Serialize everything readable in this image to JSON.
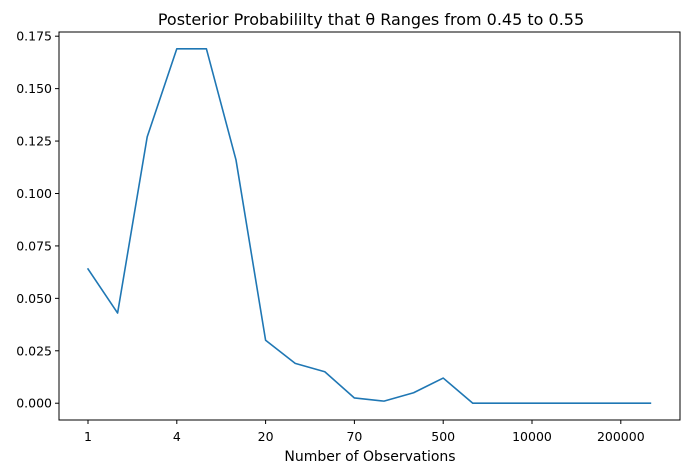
{
  "chart_data": {
    "type": "line",
    "title": "Posterior Probabililty that θ Ranges from 0.45 to 0.55",
    "xlabel": "Number of Observations",
    "ylabel": "",
    "ylim": [
      -0.008,
      0.177
    ],
    "grid": false,
    "xtick_labels": [
      "1",
      "4",
      "20",
      "70",
      "500",
      "10000",
      "200000"
    ],
    "ytick_labels": [
      "0.000",
      "0.025",
      "0.050",
      "0.075",
      "0.100",
      "0.125",
      "0.150",
      "0.175"
    ],
    "yticks": [
      0.0,
      0.025,
      0.05,
      0.075,
      0.1,
      0.125,
      0.15,
      0.175
    ],
    "series": [
      {
        "color": "#1f77b4",
        "values": [
          0.064,
          0.043,
          0.127,
          0.169,
          0.169,
          0.116,
          0.03,
          0.019,
          0.015,
          0.0025,
          0.001,
          0.005,
          0.012,
          0.0,
          0.0,
          0.0,
          0.0,
          0.0,
          0.0,
          0.0
        ]
      }
    ]
  }
}
